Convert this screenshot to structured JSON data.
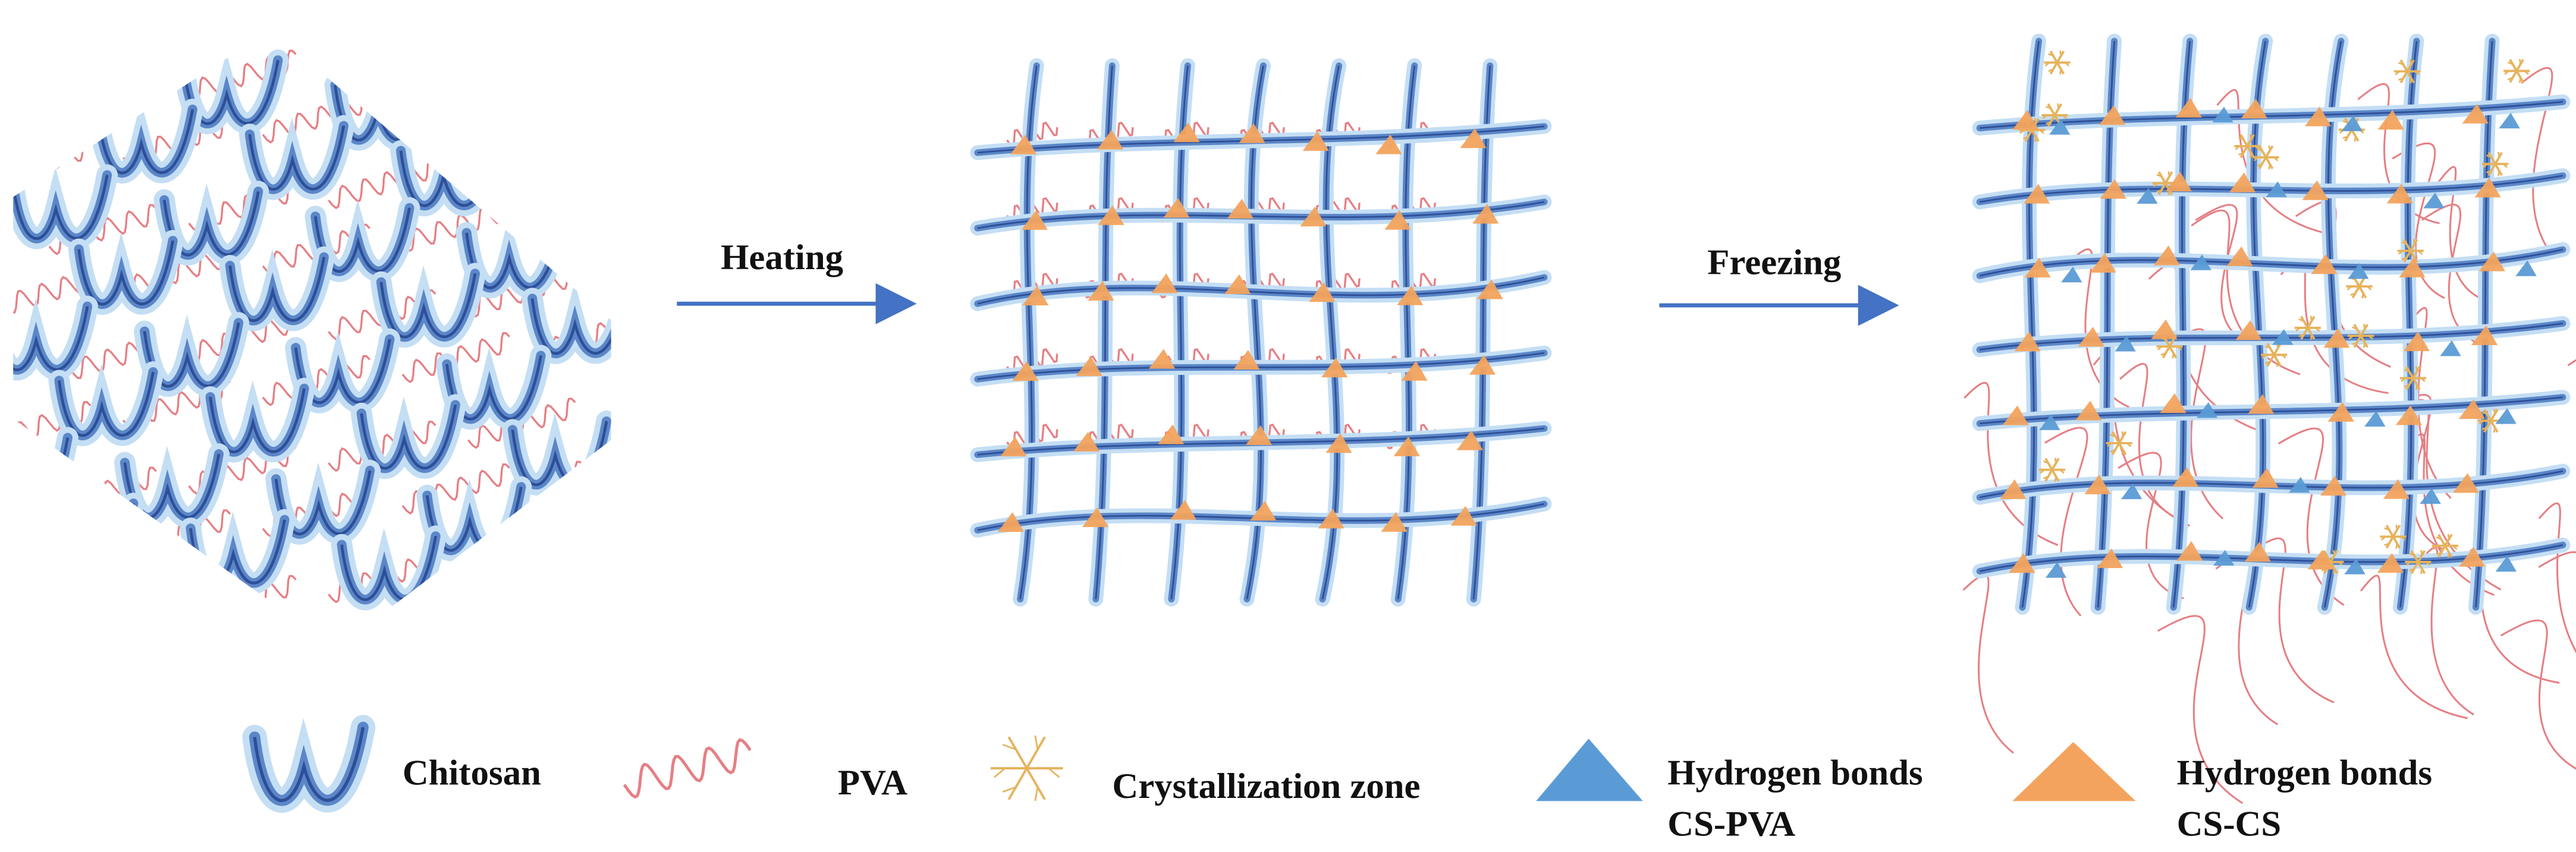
{
  "steps": [
    {
      "label": "Heating"
    },
    {
      "label": "Freezing"
    }
  ],
  "legend": [
    {
      "lines": [
        "Chitosan"
      ]
    },
    {
      "lines": [
        "PVA"
      ]
    },
    {
      "lines": [
        "Crystallization zone"
      ]
    },
    {
      "lines": [
        "Hydrogen bonds",
        "CS-PVA"
      ]
    },
    {
      "lines": [
        "Hydrogen bonds",
        "CS-CS"
      ]
    }
  ]
}
